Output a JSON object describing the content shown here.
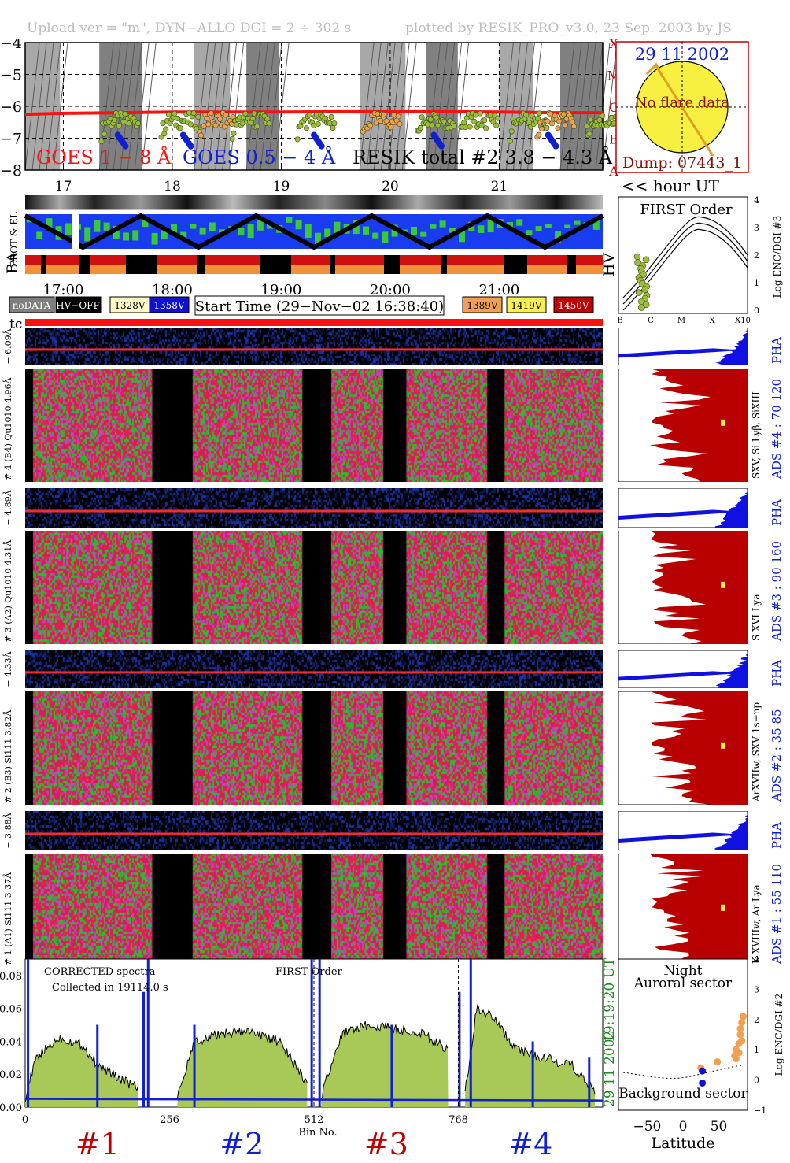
{
  "header": {
    "left": "Upload ver = \"m\", DYN−ALLO DGI =   2 ÷ 302 s",
    "right": "plotted by RESIK_PRO_v3.0, 23 Sep. 2003 by JS"
  },
  "top_chart": {
    "y_ticks": [
      "−4",
      "−5",
      "−6",
      "−7",
      "−8"
    ],
    "right_class_labels": [
      "X",
      "M",
      "C",
      "B",
      "A"
    ],
    "hour_labels": [
      "17",
      "18",
      "19",
      "20",
      "21"
    ],
    "hour_unit": "<< hour UT",
    "legend_goes1": "GOES 1 − 8 Å",
    "legend_goes05": "GOES 0.5 − 4 Å",
    "legend_resik": "RESIK total #2  3.8 − 4.3 Å"
  },
  "sun_panel": {
    "date": "29 11 2002",
    "note": "No flare data",
    "dump": "Dump: 07443_1"
  },
  "status_strip": {
    "row_labels": [
      "PROT & EL",
      "BA",
      "HV"
    ],
    "time_labels": [
      "17:00",
      "18:00",
      "19:00",
      "20:00",
      "21:00"
    ],
    "legend_items": [
      {
        "label": "noDATA",
        "bg": "#7f7f7f",
        "fg": "#ffffff"
      },
      {
        "label": "HV−OFF",
        "bg": "#000000",
        "fg": "#ffffff"
      },
      {
        "label": "1328V",
        "bg": "#fff8c8",
        "fg": "#000000"
      },
      {
        "label": "1358V",
        "bg": "#1010d0",
        "fg": "#ffffff"
      },
      {
        "label": "1389V",
        "bg": "#f0a050",
        "fg": "#000000"
      },
      {
        "label": "1419V",
        "bg": "#f8f050",
        "fg": "#000000"
      },
      {
        "label": "1450V",
        "bg": "#c00000",
        "fg": "#ffffff"
      }
    ],
    "start_time": "Start Time (29−Nov−02 16:38:40)",
    "tc_label": "tc"
  },
  "first_order_panel": {
    "title": "FIRST Order",
    "y_label": "Log ENC/DGI #3",
    "y_ticks": [
      "4",
      "3",
      "2",
      "1",
      "0"
    ],
    "x_ticks": [
      "B",
      "C",
      "M",
      "X",
      "X10"
    ]
  },
  "channels": [
    {
      "id": "4",
      "pha_label": "− 6.09Å",
      "main_label": "# 4 (B4) Qu1010 4.96Å",
      "line_id": "SXV, Si Lyβ, SiXIII",
      "ads": "ADS #4 :   70 120",
      "pha": "PHA"
    },
    {
      "id": "3",
      "pha_label": "− 4.89Å",
      "main_label": "# 3 (A2) Qu1010 4.31Å",
      "line_id": "S XVI Lya",
      "ads": "ADS #3 :   90 160",
      "pha": "PHA"
    },
    {
      "id": "2",
      "pha_label": "− 4.33Å",
      "main_label": "# 2 (B3) Si111 3.82Å",
      "line_id": "ArXVIIw, SXV 1s−np",
      "ads": "ADS #2 :   35  85",
      "pha": "PHA"
    },
    {
      "id": "1",
      "pha_label": "− 3.88Å",
      "main_label": "# 1 (A1) Si111 3.37Å",
      "line_id": "K XVIIIw, Ar Lya",
      "ads": "ADS #1 :   55 110",
      "pha": "PHA"
    }
  ],
  "spectrum": {
    "title_left": "CORRECTED spectra",
    "subtitle_left": "Collected in 19114.0 s",
    "title_mid": "FIRST Order",
    "time_ut": "19:19:20 UT",
    "date_vertical": "29 11 2002",
    "y_ticks": [
      "0.08",
      "0.06",
      "0.04",
      "0.02",
      "0.00"
    ],
    "x_ticks": [
      "0",
      "256",
      "512",
      "768"
    ],
    "x_label": "Bin No.",
    "channel_marks": [
      {
        "label": "#1",
        "color": "#c00000"
      },
      {
        "label": "#2",
        "color": "#1020d0"
      },
      {
        "label": "#3",
        "color": "#c00000"
      },
      {
        "label": "#4",
        "color": "#1020d0"
      }
    ]
  },
  "latitude_panel": {
    "title_1": "Night",
    "title_2": "Auroral sector",
    "bottom_label": "Background sector",
    "x_label": "Latitude",
    "x_ticks": [
      "−50",
      "0",
      "50"
    ],
    "y_ticks": [
      "4",
      "3",
      "2",
      "1",
      "0",
      "−1"
    ],
    "y_label": "Log ENC/DGI #2"
  },
  "chart_data": [
    {
      "type": "line",
      "ylim": [
        -8,
        -4
      ],
      "x_hours": [
        16.65,
        21.95
      ],
      "x_label_hours": [
        17,
        18,
        19,
        20,
        21
      ],
      "series": [
        {
          "color": "#ff1010",
          "x": [
            16.65,
            17.0,
            17.5,
            18.0,
            18.5,
            19.0,
            19.5,
            20.0,
            20.5,
            21.0,
            21.5,
            21.95
          ],
          "y": [
            -6.25,
            -6.22,
            -6.2,
            -6.18,
            -6.18,
            -6.18,
            -6.17,
            -6.17,
            -6.17,
            -6.18,
            -6.2,
            -6.2
          ]
        }
      ],
      "shaded_bands_hours": [
        [
          16.65,
          16.97
        ],
        [
          17.33,
          17.72
        ],
        [
          18.2,
          18.53
        ],
        [
          18.68,
          18.98
        ],
        [
          19.72,
          20.14
        ],
        [
          20.33,
          20.62
        ],
        [
          21.0,
          21.31
        ],
        [
          21.56,
          21.95
        ]
      ]
    },
    {
      "type": "area",
      "title": "FIRST Order",
      "x_range": [
        0,
        1024
      ],
      "ylim": [
        0,
        0.09
      ],
      "x_ticks": [
        0,
        256,
        512,
        768
      ],
      "segments": [
        {
          "x": [
            0,
            20,
            60,
            100,
            130,
            180,
            200
          ],
          "y": [
            0.006,
            0.03,
            0.042,
            0.038,
            0.025,
            0.015,
            0.012
          ]
        },
        {
          "x": [
            270,
            300,
            350,
            400,
            450,
            500
          ],
          "y": [
            0.005,
            0.04,
            0.045,
            0.046,
            0.04,
            0.015
          ]
        },
        {
          "x": [
            525,
            560,
            600,
            650,
            700,
            750
          ],
          "y": [
            0.007,
            0.044,
            0.05,
            0.048,
            0.045,
            0.035
          ]
        },
        {
          "x": [
            780,
            800,
            830,
            870,
            920,
            970,
            1010
          ],
          "y": [
            0.008,
            0.06,
            0.055,
            0.035,
            0.03,
            0.025,
            0.01
          ]
        }
      ]
    },
    {
      "type": "scatter",
      "xlim": [
        -90,
        90
      ],
      "ylim": [
        -1,
        4
      ],
      "series": [
        {
          "color": "#f0a050",
          "x": [
            25,
            48,
            72,
            74,
            78,
            80,
            80,
            82,
            84,
            82,
            78,
            74
          ],
          "y": [
            0.4,
            0.6,
            0.8,
            1.0,
            1.2,
            1.5,
            1.7,
            1.9,
            2.1,
            1.3,
            0.9,
            0.7
          ]
        },
        {
          "color": "#1010d0",
          "x": [
            27,
            27
          ],
          "y": [
            0.3,
            -0.1
          ]
        }
      ]
    }
  ]
}
